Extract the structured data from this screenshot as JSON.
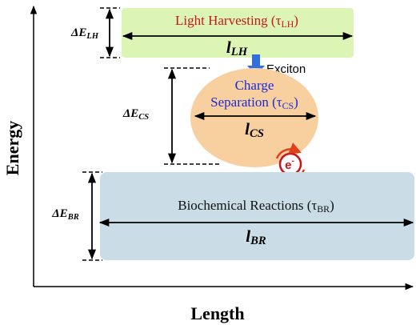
{
  "axes": {
    "y_label": "Energy",
    "x_label": "Length"
  },
  "light_harvesting": {
    "label": "Light Harvesting (τ",
    "label_sub": "LH",
    "label_end": ")",
    "length": "l",
    "length_sub": "LH",
    "energy": "ΔE",
    "energy_sub": "LH"
  },
  "exciton": "Exciton",
  "charge_separation": {
    "label_line1": "Charge",
    "label": "Separation (τ",
    "label_sub": "CS",
    "label_end": ")",
    "length": "l",
    "length_sub": "CS",
    "energy": "ΔE",
    "energy_sub": "CS"
  },
  "electron": {
    "symbol": "e",
    "sup": "-"
  },
  "biochemical_reactions": {
    "label": "Biochemical Reactions (τ",
    "label_sub": "BR",
    "label_end": ")",
    "length": "l",
    "length_sub": "BR",
    "energy": "ΔE",
    "energy_sub": "BR"
  }
}
